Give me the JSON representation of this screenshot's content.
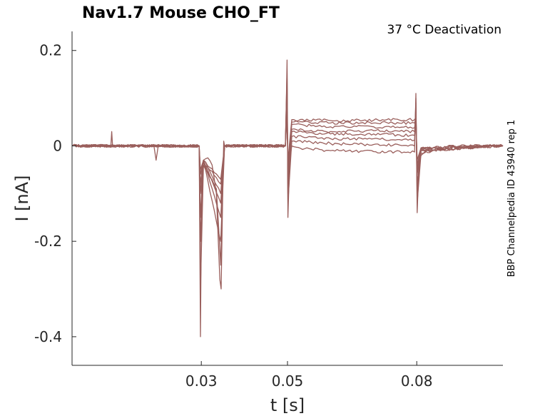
{
  "chart_data": {
    "type": "line",
    "title": "Nav1.7  Mouse  CHO_FT",
    "subtitle": "37 °C  Deactivation",
    "side_note": "BBP Channelpedia ID 43940 rep 1",
    "xlabel": "t [s]",
    "ylabel": "I [nA]",
    "xlim": [
      0.0,
      0.1
    ],
    "ylim": [
      -0.46,
      0.24
    ],
    "x_ticks": [
      {
        "value": 0.03,
        "label": "0.03"
      },
      {
        "value": 0.05,
        "label": "0.05"
      },
      {
        "value": 0.08,
        "label": "0.08"
      }
    ],
    "y_ticks": [
      {
        "value": 0.2,
        "label": "0.2"
      },
      {
        "value": 0.0,
        "label": "0"
      },
      {
        "value": -0.2,
        "label": "-0.2"
      },
      {
        "value": -0.4,
        "label": "-0.4"
      }
    ],
    "grid": false,
    "legend": "none",
    "trace_color": "#9a5f5c",
    "series": [
      {
        "values": [
          [
            0,
            0.0
          ],
          [
            0.005,
            0.0
          ],
          [
            0.009,
            0.0
          ],
          [
            0.0092,
            0.03
          ],
          [
            0.0094,
            0.0
          ],
          [
            0.019,
            0.0
          ],
          [
            0.0195,
            -0.03
          ],
          [
            0.02,
            0.0
          ],
          [
            0.0295,
            0.0
          ],
          [
            0.0298,
            -0.4
          ],
          [
            0.0301,
            -0.05
          ],
          [
            0.0305,
            -0.03
          ],
          [
            0.0315,
            -0.025
          ],
          [
            0.0325,
            -0.04
          ],
          [
            0.0335,
            -0.1
          ],
          [
            0.0343,
            -0.28
          ],
          [
            0.0346,
            -0.3
          ],
          [
            0.035,
            -0.08
          ],
          [
            0.0352,
            0.01
          ],
          [
            0.0354,
            0.0
          ],
          [
            0.0495,
            0.0
          ],
          [
            0.0497,
            0.08
          ],
          [
            0.0499,
            0.18
          ],
          [
            0.05,
            0.05
          ],
          [
            0.0501,
            -0.15
          ],
          [
            0.0505,
            -0.03
          ],
          [
            0.051,
            0.0
          ],
          [
            0.053,
            -0.005
          ],
          [
            0.06,
            -0.01
          ],
          [
            0.07,
            -0.012
          ],
          [
            0.0795,
            -0.013
          ],
          [
            0.0798,
            0.11
          ],
          [
            0.0801,
            -0.14
          ],
          [
            0.0805,
            -0.04
          ],
          [
            0.081,
            -0.02
          ],
          [
            0.083,
            -0.005
          ],
          [
            0.09,
            0.0
          ],
          [
            0.1,
            0.0
          ]
        ]
      },
      {
        "values": [
          [
            0,
            0.0
          ],
          [
            0.019,
            0.0
          ],
          [
            0.0295,
            0.0
          ],
          [
            0.0298,
            -0.3
          ],
          [
            0.0305,
            -0.04
          ],
          [
            0.0335,
            -0.09
          ],
          [
            0.0345,
            -0.25
          ],
          [
            0.035,
            -0.06
          ],
          [
            0.0354,
            0.0
          ],
          [
            0.0495,
            0.0
          ],
          [
            0.0499,
            0.16
          ],
          [
            0.0501,
            -0.12
          ],
          [
            0.051,
            0.01
          ],
          [
            0.06,
            0.005
          ],
          [
            0.07,
            0.003
          ],
          [
            0.0795,
            0.0
          ],
          [
            0.0798,
            0.1
          ],
          [
            0.0801,
            -0.12
          ],
          [
            0.081,
            -0.015
          ],
          [
            0.09,
            0.0
          ],
          [
            0.1,
            0.0
          ]
        ]
      },
      {
        "values": [
          [
            0,
            0.0
          ],
          [
            0.0295,
            0.0
          ],
          [
            0.0298,
            -0.2
          ],
          [
            0.0305,
            -0.03
          ],
          [
            0.0345,
            -0.2
          ],
          [
            0.0354,
            0.0
          ],
          [
            0.0495,
            0.0
          ],
          [
            0.0499,
            0.14
          ],
          [
            0.0501,
            -0.1
          ],
          [
            0.051,
            0.02
          ],
          [
            0.06,
            0.015
          ],
          [
            0.07,
            0.015
          ],
          [
            0.0795,
            0.012
          ],
          [
            0.0798,
            0.09
          ],
          [
            0.0801,
            -0.1
          ],
          [
            0.081,
            -0.01
          ],
          [
            0.1,
            0.0
          ]
        ]
      },
      {
        "values": [
          [
            0,
            0.0
          ],
          [
            0.0295,
            0.0
          ],
          [
            0.0298,
            -0.15
          ],
          [
            0.0305,
            -0.03
          ],
          [
            0.0345,
            -0.15
          ],
          [
            0.0354,
            0.0
          ],
          [
            0.0495,
            0.0
          ],
          [
            0.0499,
            0.12
          ],
          [
            0.0501,
            -0.08
          ],
          [
            0.051,
            0.03
          ],
          [
            0.06,
            0.025
          ],
          [
            0.07,
            0.025
          ],
          [
            0.0795,
            0.022
          ],
          [
            0.0798,
            0.08
          ],
          [
            0.0801,
            -0.08
          ],
          [
            0.081,
            -0.01
          ],
          [
            0.1,
            0.0
          ]
        ]
      },
      {
        "values": [
          [
            0,
            0.0
          ],
          [
            0.0295,
            0.0
          ],
          [
            0.0298,
            -0.1
          ],
          [
            0.0305,
            -0.03
          ],
          [
            0.0345,
            -0.12
          ],
          [
            0.0354,
            0.0
          ],
          [
            0.0495,
            0.0
          ],
          [
            0.0499,
            0.1
          ],
          [
            0.0501,
            -0.06
          ],
          [
            0.051,
            0.035
          ],
          [
            0.06,
            0.03
          ],
          [
            0.07,
            0.032
          ],
          [
            0.0795,
            0.03
          ],
          [
            0.0798,
            0.07
          ],
          [
            0.0801,
            -0.06
          ],
          [
            0.081,
            -0.008
          ],
          [
            0.1,
            0.0
          ]
        ]
      },
      {
        "values": [
          [
            0,
            0.0
          ],
          [
            0.0295,
            0.0
          ],
          [
            0.0298,
            -0.08
          ],
          [
            0.0305,
            -0.03
          ],
          [
            0.0345,
            -0.1
          ],
          [
            0.0354,
            0.0
          ],
          [
            0.0495,
            0.0
          ],
          [
            0.0499,
            0.08
          ],
          [
            0.0501,
            -0.05
          ],
          [
            0.051,
            0.045
          ],
          [
            0.06,
            0.04
          ],
          [
            0.07,
            0.04
          ],
          [
            0.0795,
            0.038
          ],
          [
            0.0798,
            0.06
          ],
          [
            0.0801,
            -0.05
          ],
          [
            0.081,
            -0.006
          ],
          [
            0.1,
            0.0
          ]
        ]
      },
      {
        "values": [
          [
            0,
            0.0
          ],
          [
            0.0295,
            0.0
          ],
          [
            0.0298,
            -0.06
          ],
          [
            0.0305,
            -0.03
          ],
          [
            0.0345,
            -0.08
          ],
          [
            0.0354,
            0.0
          ],
          [
            0.0495,
            0.0
          ],
          [
            0.0499,
            0.07
          ],
          [
            0.0501,
            -0.04
          ],
          [
            0.051,
            0.05
          ],
          [
            0.06,
            0.048
          ],
          [
            0.07,
            0.048
          ],
          [
            0.0795,
            0.048
          ],
          [
            0.0798,
            0.06
          ],
          [
            0.0801,
            -0.04
          ],
          [
            0.081,
            -0.005
          ],
          [
            0.1,
            0.0
          ]
        ]
      },
      {
        "values": [
          [
            0,
            0.0
          ],
          [
            0.0295,
            0.0
          ],
          [
            0.0298,
            -0.05
          ],
          [
            0.0305,
            -0.03
          ],
          [
            0.0345,
            -0.07
          ],
          [
            0.0354,
            0.0
          ],
          [
            0.0495,
            0.0
          ],
          [
            0.0499,
            0.06
          ],
          [
            0.0501,
            -0.03
          ],
          [
            0.051,
            0.055
          ],
          [
            0.06,
            0.053
          ],
          [
            0.07,
            0.054
          ],
          [
            0.0795,
            0.055
          ],
          [
            0.0798,
            0.06
          ],
          [
            0.0801,
            -0.03
          ],
          [
            0.081,
            -0.004
          ],
          [
            0.1,
            0.0
          ]
        ]
      }
    ]
  }
}
